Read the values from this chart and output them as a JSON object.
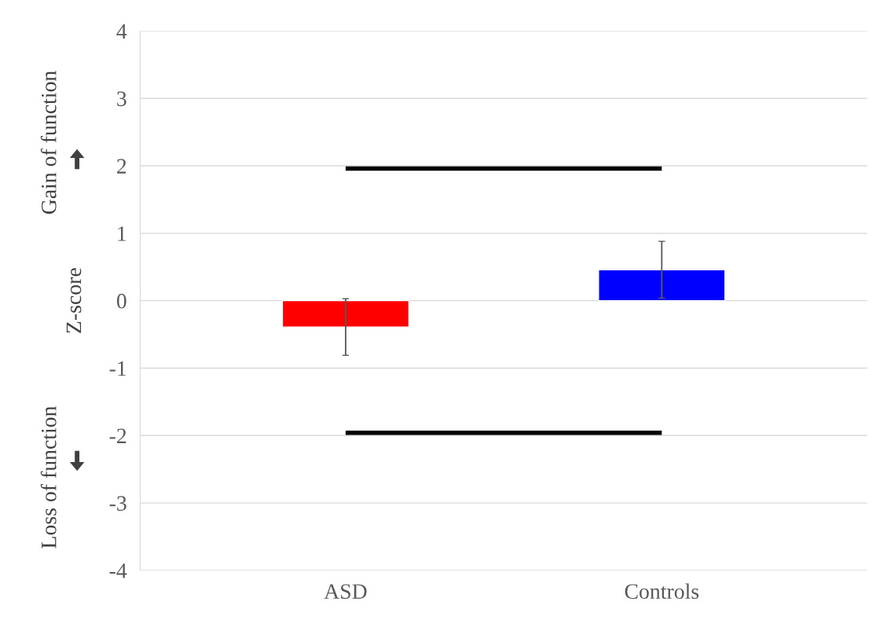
{
  "chart_data": {
    "type": "bar",
    "ylabel": "Z-score",
    "categories": [
      "ASD",
      "Controls"
    ],
    "values": [
      -0.39,
      0.46
    ],
    "colors": [
      "#ff0000",
      "#0000ff"
    ],
    "errors": [
      0.42,
      0.42
    ],
    "ylim": [
      -4,
      4
    ],
    "yticks": [
      -4,
      -3,
      -2,
      -1,
      0,
      1,
      2,
      3,
      4
    ],
    "grid": "y",
    "ref_lines": [
      {
        "axis": "y",
        "value": 1.96,
        "color": "#000000"
      },
      {
        "axis": "y",
        "value": -1.96,
        "color": "#000000"
      }
    ],
    "annotations": [
      "Gain of function",
      "Loss of function"
    ]
  }
}
